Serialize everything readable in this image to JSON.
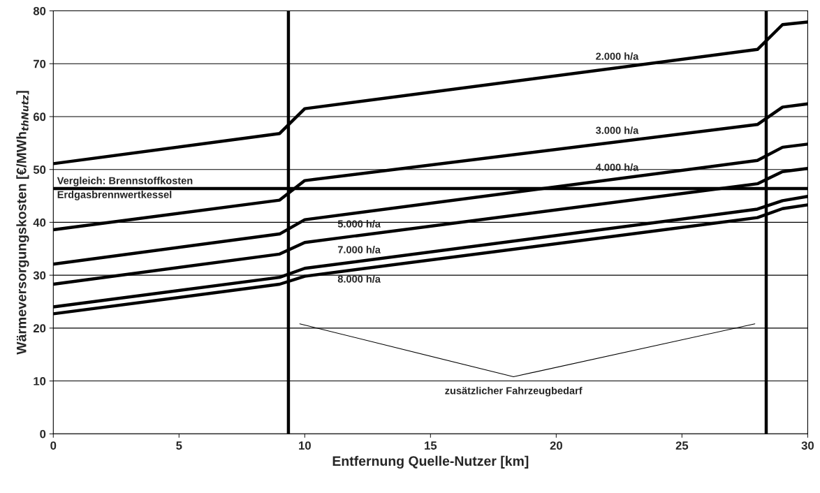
{
  "chart_data": {
    "type": "line",
    "xlabel": "Entfernung Quelle-Nutzer [km]",
    "ylabel": "Wärmeversorgungskosten [€/MWh$_{thNutz}$]",
    "x": [
      0,
      9,
      10,
      28,
      29,
      30
    ],
    "series": [
      {
        "name": "2.000 h/a",
        "color": "#000000",
        "values": [
          51.1,
          56.8,
          61.5,
          72.7,
          77.4,
          77.9
        ]
      },
      {
        "name": "3.000 h/a",
        "color": "#000000",
        "values": [
          38.6,
          44.2,
          47.9,
          58.5,
          61.8,
          62.4
        ]
      },
      {
        "name": "4.000 h/a",
        "color": "#000000",
        "values": [
          32.1,
          37.8,
          40.5,
          51.7,
          54.2,
          54.8
        ]
      },
      {
        "name": "5.000 h/a",
        "color": "#000000",
        "values": [
          28.3,
          34.0,
          36.2,
          47.3,
          49.6,
          50.2
        ]
      },
      {
        "name": "7.000 h/a",
        "color": "#000000",
        "values": [
          24.0,
          29.6,
          31.3,
          42.5,
          44.1,
          44.9
        ]
      },
      {
        "name": "8.000 h/a",
        "color": "#000000",
        "values": [
          22.7,
          28.3,
          29.8,
          40.9,
          42.6,
          43.3
        ]
      }
    ],
    "annotations": [
      "zusätzlicher Fahrzeugbedarf"
    ],
    "ref_lines": [
      {
        "axis": "y",
        "value": 46.4,
        "label": "Vergleich: Brennstoffkosten\nErdgasbrennwertkessel",
        "color": "#000000"
      },
      {
        "axis": "x",
        "value": 9.35,
        "color": "#000000"
      },
      {
        "axis": "x",
        "value": 28.35,
        "color": "#000000"
      }
    ],
    "xlim": [
      0,
      30
    ],
    "xticks": [
      0,
      5,
      10,
      15,
      20,
      25,
      30
    ],
    "ylim": [
      0,
      80
    ],
    "yticks": [
      0,
      10,
      20,
      30,
      40,
      50,
      60,
      70,
      80
    ],
    "grid": "y",
    "legend": false,
    "marker": "none",
    "line_style": "solid"
  }
}
